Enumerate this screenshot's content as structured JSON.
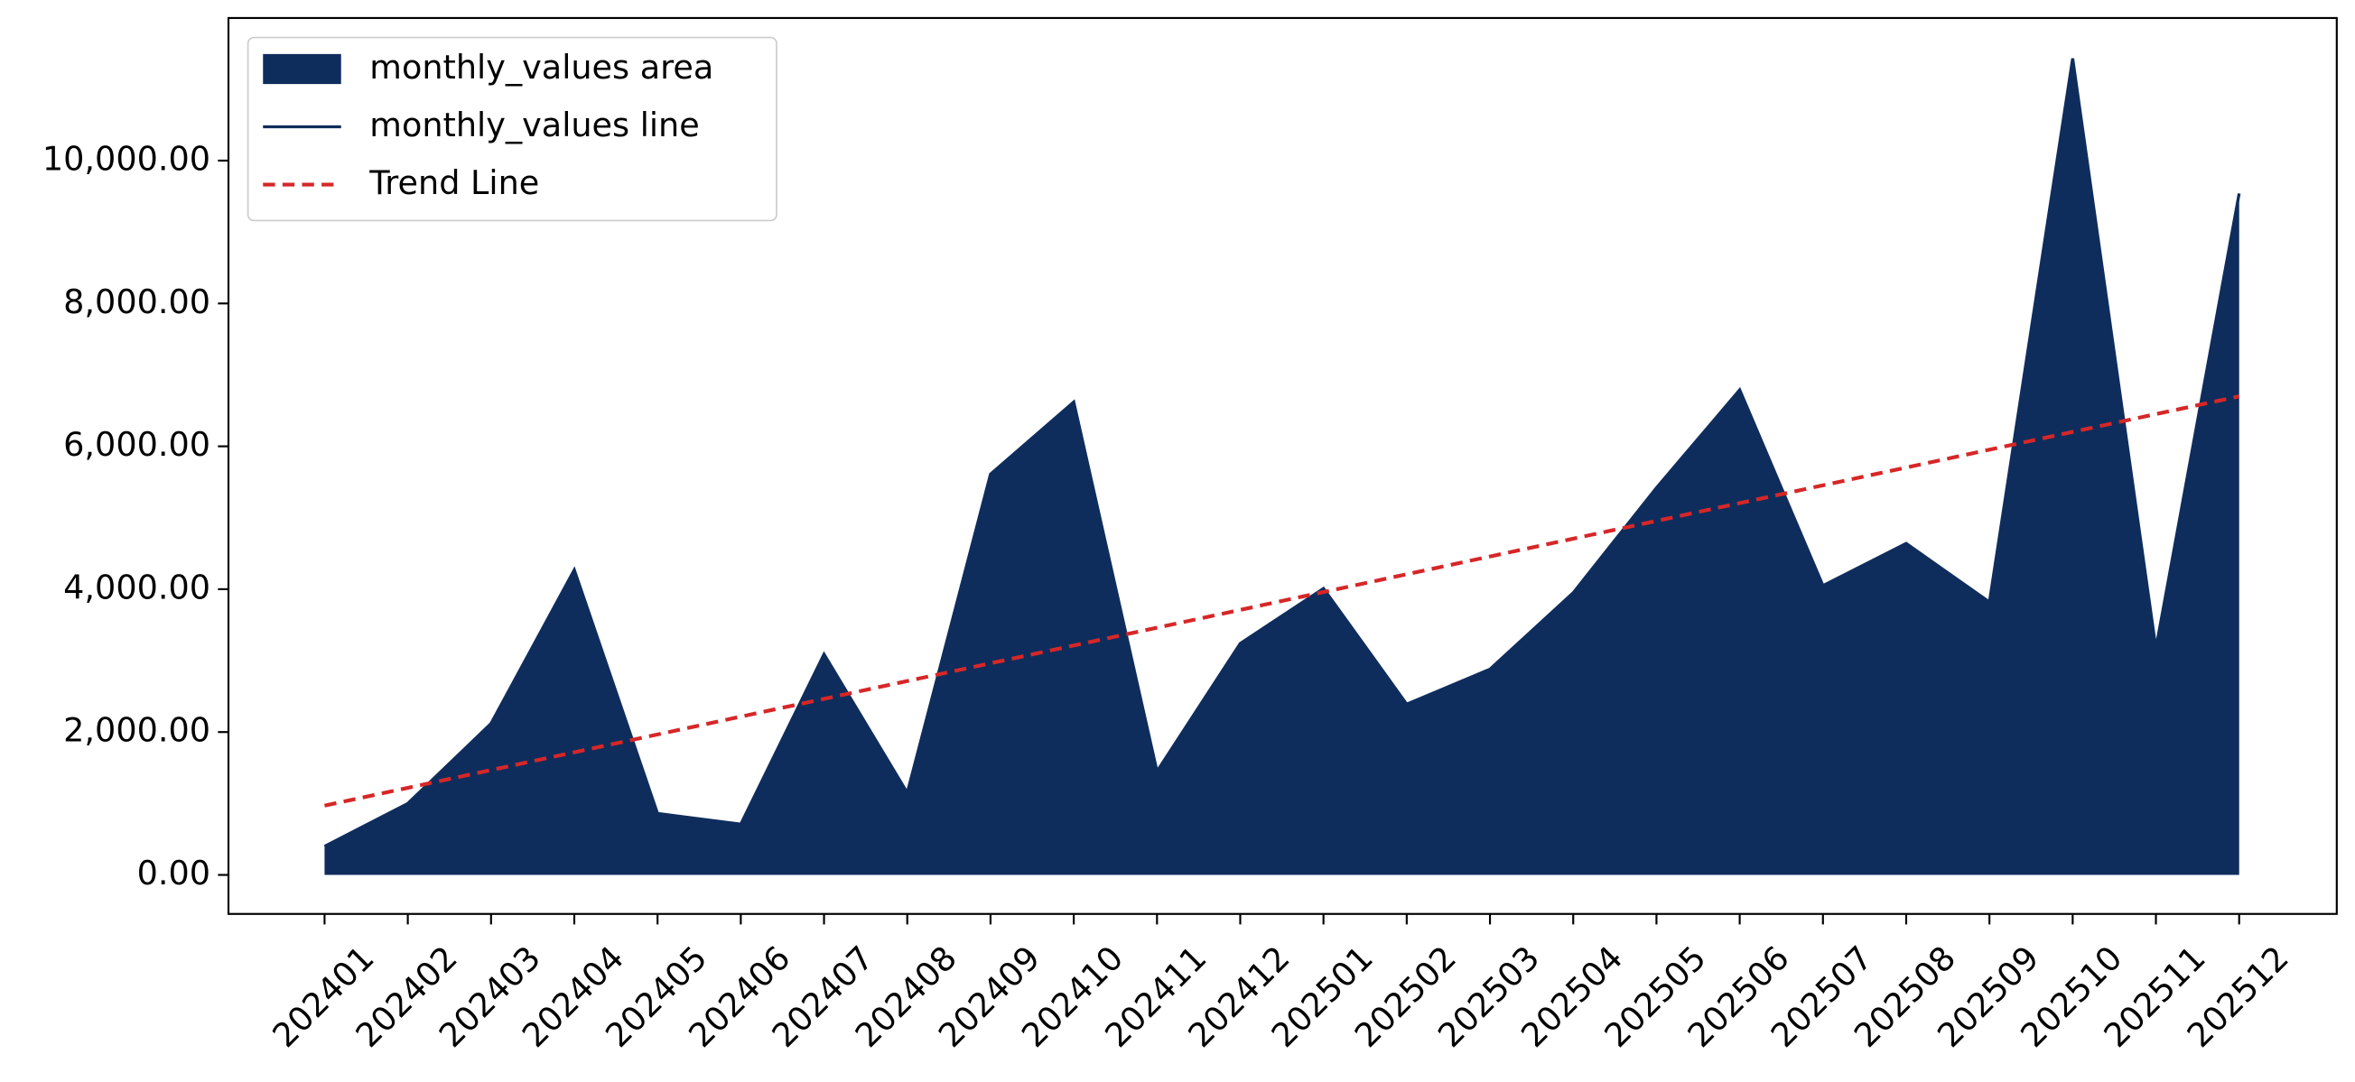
{
  "chart_data": {
    "type": "area",
    "categories": [
      "202401",
      "202402",
      "202403",
      "202404",
      "202405",
      "202406",
      "202407",
      "202408",
      "202409",
      "202410",
      "202411",
      "202412",
      "202501",
      "202502",
      "202503",
      "202504",
      "202505",
      "202506",
      "202507",
      "202508",
      "202509",
      "202510",
      "202511",
      "202512"
    ],
    "series": [
      {
        "name": "monthly_values area",
        "type": "area",
        "color": "#0f2d5c",
        "values": [
          400,
          1000,
          2120,
          4270,
          860,
          710,
          3090,
          1150,
          5610,
          6620,
          1450,
          3240,
          4010,
          2390,
          2880,
          3950,
          5420,
          6790,
          4050,
          4640,
          3820,
          11430,
          3170,
          9540
        ]
      },
      {
        "name": "monthly_values line",
        "type": "line",
        "color": "#0f2d5c",
        "values": [
          400,
          1000,
          2120,
          4270,
          860,
          710,
          3090,
          1150,
          5610,
          6620,
          1450,
          3240,
          4010,
          2390,
          2880,
          3950,
          5420,
          6790,
          4050,
          4640,
          3820,
          11430,
          3170,
          9540
        ]
      },
      {
        "name": "Trend Line",
        "type": "line",
        "dashed": true,
        "color": "#d62728",
        "values": [
          970,
          1219,
          1468,
          1717,
          1966,
          2216,
          2465,
          2714,
          2963,
          3212,
          3461,
          3710,
          3960,
          4209,
          4458,
          4707,
          4956,
          5205,
          5454,
          5703,
          5953,
          6202,
          6451,
          6700
        ]
      }
    ],
    "ylim": [
      -546,
      11996
    ],
    "yticks": [
      {
        "value": 0,
        "label": "0.00"
      },
      {
        "value": 2000,
        "label": "2,000.00"
      },
      {
        "value": 4000,
        "label": "4,000.00"
      },
      {
        "value": 6000,
        "label": "6,000.00"
      },
      {
        "value": 8000,
        "label": "8,000.00"
      },
      {
        "value": 10000,
        "label": "10,000.00"
      }
    ],
    "grid": false,
    "legend": "upper left"
  }
}
